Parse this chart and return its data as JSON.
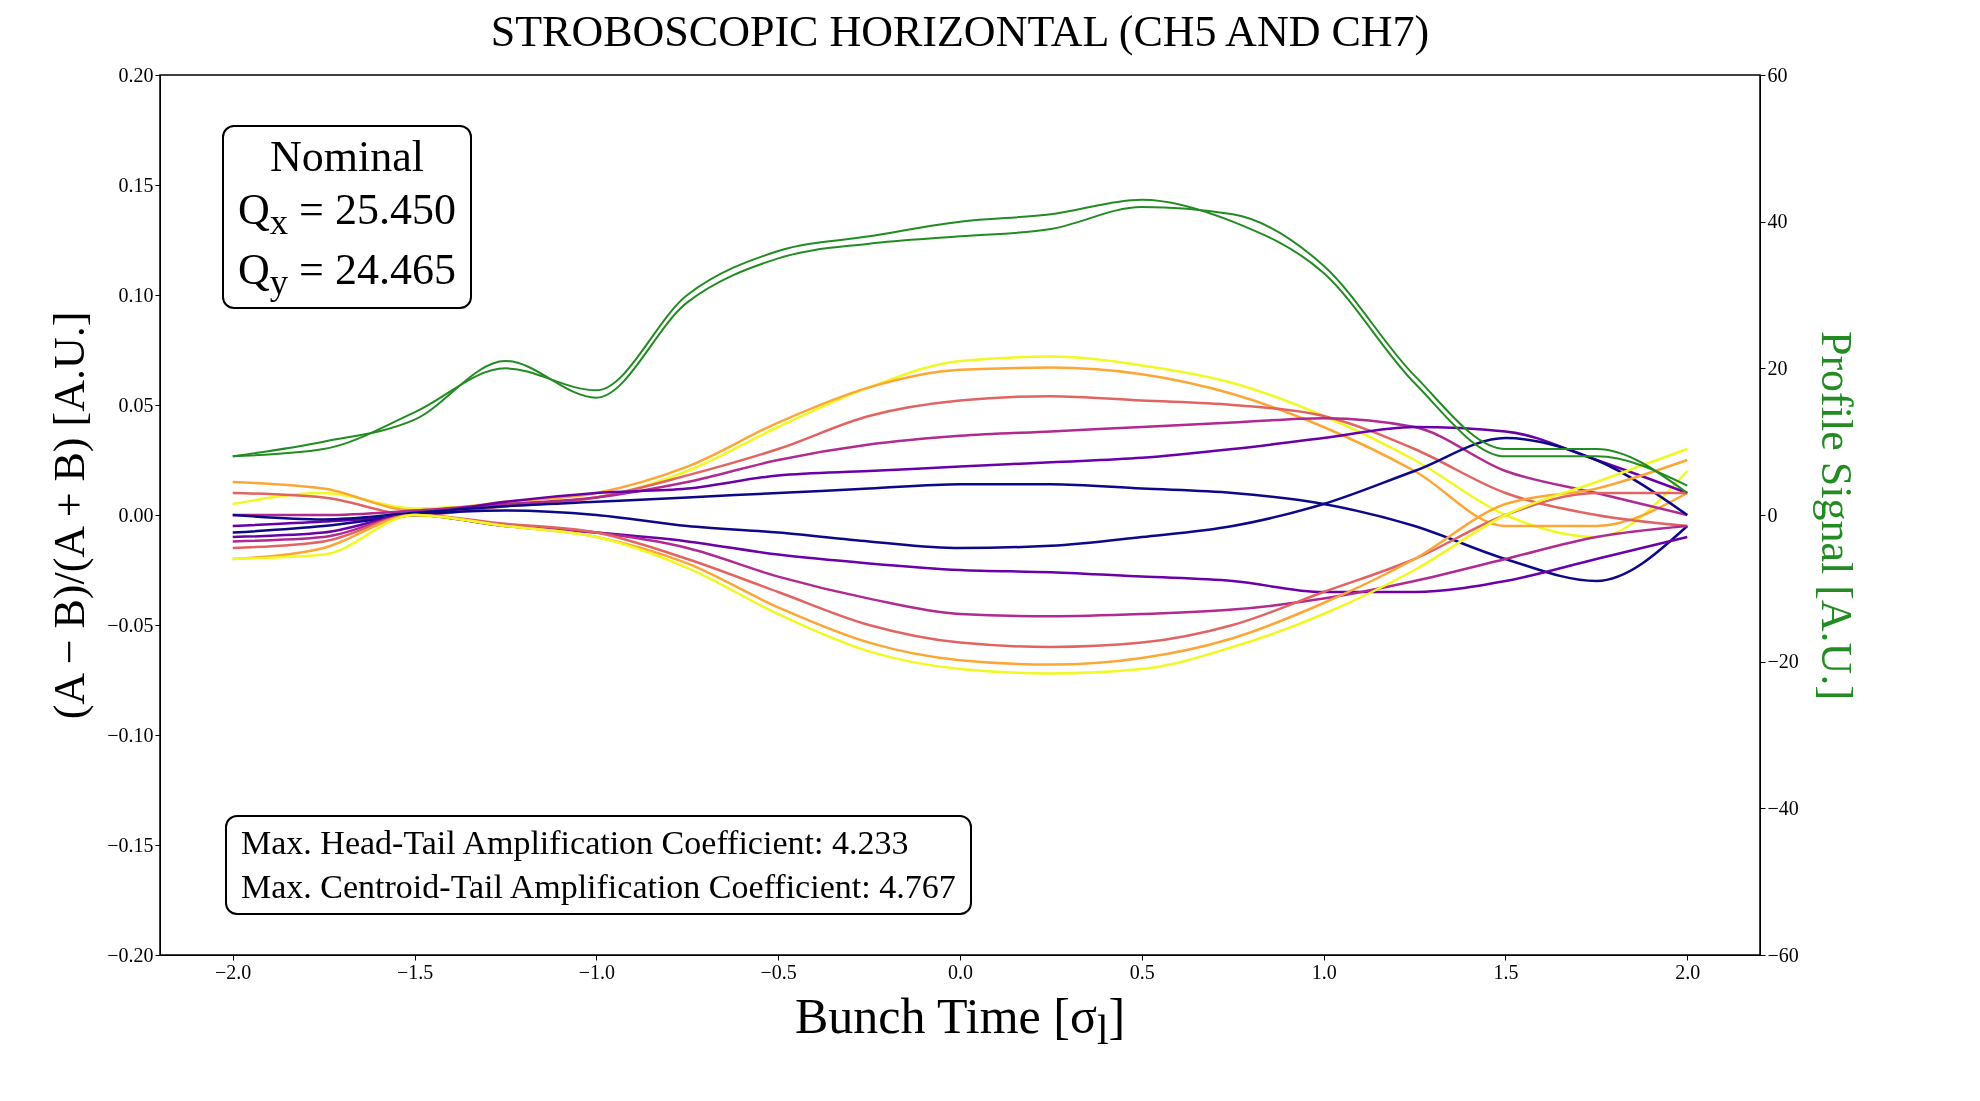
{
  "chart_data": {
    "type": "line",
    "title": "STROBOSCOPIC HORIZONTAL (CH5 AND CH7)",
    "xlabel": "Bunch Time [σ$_{l}$]",
    "ylabel": "(A − B)/(A + B) [A.U.]",
    "y2label": "Profile Signal [A.U.]",
    "x": [
      -2,
      -1.75,
      -1.5,
      -1.25,
      -1,
      -0.75,
      -0.5,
      -0.25,
      0,
      0.25,
      0.5,
      0.75,
      1,
      1.25,
      1.5,
      1.75,
      2
    ],
    "xlim": [
      -2.2,
      2.2
    ],
    "xticks": [
      {
        "value": -2,
        "label": "−2.0"
      },
      {
        "value": -1.5,
        "label": "−1.5"
      },
      {
        "value": -1,
        "label": "−1.0"
      },
      {
        "value": -0.5,
        "label": "−0.5"
      },
      {
        "value": 0,
        "label": "0.0"
      },
      {
        "value": 0.5,
        "label": "0.5"
      },
      {
        "value": 1,
        "label": "1.0"
      },
      {
        "value": 1.5,
        "label": "1.5"
      },
      {
        "value": 2,
        "label": "2.0"
      }
    ],
    "ylim": [
      -0.2,
      0.2
    ],
    "yticks": [
      {
        "value": -0.2,
        "label": "−0.20"
      },
      {
        "value": -0.15,
        "label": "−0.15"
      },
      {
        "value": -0.1,
        "label": "−0.10"
      },
      {
        "value": -0.05,
        "label": "−0.05"
      },
      {
        "value": 0,
        "label": "0.00"
      },
      {
        "value": 0.05,
        "label": "0.05"
      },
      {
        "value": 0.1,
        "label": "0.10"
      },
      {
        "value": 0.15,
        "label": "0.15"
      },
      {
        "value": 0.2,
        "label": "0.20"
      }
    ],
    "y2lim": [
      -60,
      60
    ],
    "y2ticks": [
      {
        "value": -60,
        "label": "−60"
      },
      {
        "value": -40,
        "label": "−40"
      },
      {
        "value": -20,
        "label": "−20"
      },
      0,
      20,
      40,
      60
    ],
    "grid": false,
    "legend": false,
    "marker": "none",
    "line_style": "solid",
    "series": [
      {
        "color": "#f0f921",
        "values": [
          0.005,
          0.01,
          0.003,
          0.005,
          0.008,
          0.02,
          0.04,
          0.058,
          0.07,
          0.072,
          0.068,
          0.06,
          0.045,
          0.025,
          0.0,
          -0.01,
          0.02
        ]
      },
      {
        "color": "#fca636",
        "values": [
          0.015,
          0.012,
          0.002,
          0.006,
          0.01,
          0.022,
          0.042,
          0.058,
          0.066,
          0.067,
          0.064,
          0.055,
          0.04,
          0.02,
          -0.005,
          -0.005,
          0.01
        ]
      },
      {
        "color": "#e16462",
        "values": [
          0.01,
          0.008,
          0.0,
          0.004,
          0.008,
          0.018,
          0.03,
          0.045,
          0.052,
          0.054,
          0.052,
          0.05,
          0.045,
          0.03,
          0.01,
          0.0,
          -0.005
        ]
      },
      {
        "color": "#b12a90",
        "values": [
          0.0,
          0.0,
          0.002,
          0.005,
          0.008,
          0.015,
          0.025,
          0.032,
          0.036,
          0.038,
          0.04,
          0.042,
          0.044,
          0.04,
          0.02,
          0.01,
          0.0
        ]
      },
      {
        "color": "#6a00a8",
        "values": [
          -0.005,
          -0.003,
          0.0,
          0.006,
          0.01,
          0.012,
          0.018,
          0.02,
          0.022,
          0.024,
          0.026,
          0.03,
          0.035,
          0.04,
          0.038,
          0.025,
          0.01
        ]
      },
      {
        "color": "#0d0887",
        "values": [
          0.0,
          -0.002,
          0.001,
          0.004,
          0.006,
          0.008,
          0.01,
          0.012,
          0.014,
          0.014,
          0.012,
          0.01,
          0.005,
          -0.005,
          -0.02,
          -0.03,
          -0.005
        ]
      },
      {
        "color": "#0d0887",
        "values": [
          -0.008,
          -0.005,
          0.0,
          0.002,
          0.0,
          -0.005,
          -0.008,
          -0.012,
          -0.015,
          -0.014,
          -0.01,
          -0.005,
          0.005,
          0.02,
          0.035,
          0.025,
          0.0
        ]
      },
      {
        "color": "#6a00a8",
        "values": [
          -0.01,
          -0.008,
          0.0,
          -0.005,
          -0.008,
          -0.012,
          -0.018,
          -0.022,
          -0.025,
          -0.026,
          -0.028,
          -0.03,
          -0.035,
          -0.035,
          -0.03,
          -0.02,
          -0.01
        ]
      },
      {
        "color": "#b12a90",
        "values": [
          -0.012,
          -0.01,
          0.0,
          -0.005,
          -0.008,
          -0.015,
          -0.028,
          -0.038,
          -0.045,
          -0.046,
          -0.045,
          -0.043,
          -0.038,
          -0.03,
          -0.02,
          -0.01,
          -0.005
        ]
      },
      {
        "color": "#e16462",
        "values": [
          -0.015,
          -0.012,
          0.0,
          -0.004,
          -0.008,
          -0.02,
          -0.035,
          -0.05,
          -0.058,
          -0.06,
          -0.058,
          -0.05,
          -0.035,
          -0.02,
          0.0,
          0.01,
          0.01
        ]
      },
      {
        "color": "#fca636",
        "values": [
          -0.02,
          -0.015,
          0.0,
          -0.005,
          -0.01,
          -0.022,
          -0.042,
          -0.058,
          -0.066,
          -0.068,
          -0.065,
          -0.056,
          -0.04,
          -0.02,
          0.005,
          0.012,
          0.025
        ]
      },
      {
        "color": "#f0f921",
        "values": [
          -0.02,
          -0.018,
          0.0,
          -0.005,
          -0.01,
          -0.024,
          -0.045,
          -0.062,
          -0.07,
          -0.072,
          -0.07,
          -0.06,
          -0.045,
          -0.025,
          0.0,
          0.015,
          0.03
        ]
      },
      {
        "color": "#228b22",
        "axis": "y2",
        "values": [
          8,
          9,
          14,
          20,
          17,
          30,
          36,
          38,
          40,
          41,
          43,
          40,
          33,
          18,
          8,
          8,
          4
        ]
      },
      {
        "color": "#228b22",
        "axis": "y2",
        "values": [
          8,
          10,
          13,
          21,
          16,
          29,
          35,
          37,
          38,
          39,
          42,
          41,
          34,
          19,
          9,
          9,
          3
        ]
      }
    ],
    "annotations": [
      "Nominal",
      "Q$_{x}$ = 25.450",
      "Q$_{y}$ = 24.465",
      "Max. Head-Tail Amplification Coefficient: 4.233",
      "Max. Centroid-Tail Amplification Coefficient: 4.767"
    ]
  }
}
